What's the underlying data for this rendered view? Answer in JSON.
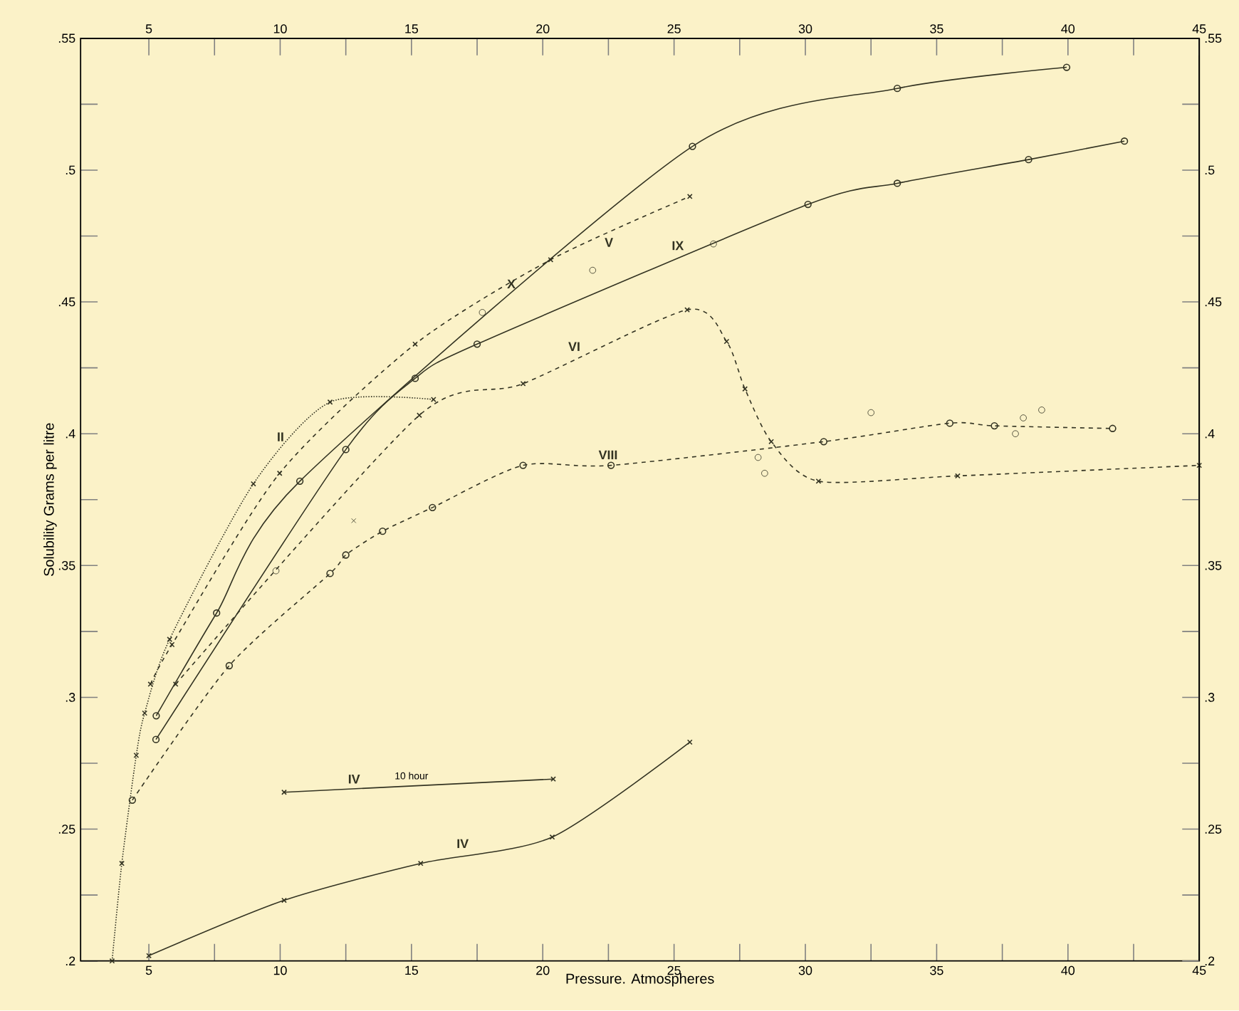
{
  "chart_data": {
    "type": "line",
    "xlabel": "Pressure. Atmospheres",
    "ylabel": "Solubility Grams per litre",
    "xlim": [
      2.4,
      45
    ],
    "x2lim": [
      2.4,
      45
    ],
    "xticks": [
      5,
      {
        "value": 7.5,
        "label": null
      },
      10,
      {
        "value": 12.5,
        "label": null
      },
      15,
      {
        "value": 17.5,
        "label": null
      },
      20,
      {
        "value": 22.5,
        "label": null
      },
      25,
      {
        "value": 27.5,
        "label": null
      },
      30,
      {
        "value": 32.5,
        "label": null
      },
      35,
      {
        "value": 37.5,
        "label": null
      },
      40,
      {
        "value": 42.5,
        "label": null
      },
      45
    ],
    "x2ticks": [
      5,
      {
        "value": 7.5,
        "label": null
      },
      10,
      {
        "value": 12.5,
        "label": null
      },
      15,
      {
        "value": 17.5,
        "label": null
      },
      20,
      {
        "value": 22.5,
        "label": null
      },
      25,
      {
        "value": 27.5,
        "label": null
      },
      30,
      {
        "value": 32.5,
        "label": null
      },
      35,
      {
        "value": 37.5,
        "label": null
      },
      40,
      {
        "value": 42.5,
        "label": null
      },
      45
    ],
    "ylim": [
      0.2,
      0.55
    ],
    "y2lim": [
      0.2,
      0.55
    ],
    "yticks": [
      {
        "value": 0.2,
        "label": ".2"
      },
      {
        "value": 0.225,
        "label": null
      },
      {
        "value": 0.25,
        "label": ".25"
      },
      {
        "value": 0.275,
        "label": null
      },
      {
        "value": 0.3,
        "label": ".3"
      },
      {
        "value": 0.325,
        "label": null
      },
      {
        "value": 0.35,
        "label": ".35"
      },
      {
        "value": 0.375,
        "label": null
      },
      {
        "value": 0.4,
        "label": ".4"
      },
      {
        "value": 0.425,
        "label": null
      },
      {
        "value": 0.45,
        "label": ".45"
      },
      {
        "value": 0.475,
        "label": null
      },
      {
        "value": 0.5,
        "label": ".5"
      },
      {
        "value": 0.525,
        "label": null
      },
      {
        "value": 0.55,
        "label": ".55"
      }
    ],
    "y2ticks": [
      {
        "value": 0.2,
        "label": ".2"
      },
      {
        "value": 0.225,
        "label": null
      },
      {
        "value": 0.25,
        "label": ".25"
      },
      {
        "value": 0.275,
        "label": null
      },
      {
        "value": 0.3,
        "label": ".3"
      },
      {
        "value": 0.325,
        "label": null
      },
      {
        "value": 0.35,
        "label": ".35"
      },
      {
        "value": 0.375,
        "label": null
      },
      {
        "value": 0.4,
        "label": ".4"
      },
      {
        "value": 0.425,
        "label": null
      },
      {
        "value": 0.45,
        "label": ".45"
      },
      {
        "value": 0.475,
        "label": null
      },
      {
        "value": 0.5,
        "label": ".5"
      },
      {
        "value": 0.525,
        "label": null
      },
      {
        "value": 0.55,
        "label": ".55"
      }
    ],
    "series": [
      {
        "name": "X",
        "color": "#333322",
        "marker": "circle",
        "line_style": "solid",
        "x": [
          5.28,
          7.58,
          10.75,
          25.7,
          33.5,
          39.95
        ],
        "values": [
          0.293,
          0.332,
          0.382,
          0.509,
          0.531,
          0.539
        ]
      },
      {
        "name": "IX",
        "color": "#333322",
        "marker": "circle",
        "line_style": "solid",
        "x": [
          5.27,
          12.5,
          15.14,
          17.5,
          30.1,
          33.5,
          38.5,
          42.15
        ],
        "values": [
          0.284,
          0.394,
          0.421,
          0.434,
          0.487,
          0.495,
          0.504,
          0.511
        ]
      },
      {
        "name": "V",
        "color": "#333322",
        "marker": "cross",
        "line_style": "dashed",
        "x": [
          5.06,
          5.88,
          9.98,
          15.14,
          20.3,
          25.6
        ],
        "values": [
          0.305,
          0.32,
          0.385,
          0.434,
          0.466,
          0.49
        ]
      },
      {
        "name": "VI",
        "color": "#333322",
        "marker": "cross",
        "line_style": "dashed",
        "x": [
          6.02,
          15.3,
          19.25,
          25.5,
          27.0,
          27.7,
          28.7,
          30.5,
          35.8,
          45
        ],
        "values": [
          0.305,
          0.407,
          0.419,
          0.447,
          0.435,
          0.417,
          0.397,
          0.382,
          0.384,
          0.388
        ]
      },
      {
        "name": "II",
        "color": "#333322",
        "marker": "cross",
        "line_style": "dotted",
        "x": [
          3.6,
          3.97,
          4.52,
          4.84,
          5.79,
          8.98,
          11.9,
          15.84
        ],
        "values": [
          0.2,
          0.237,
          0.278,
          0.294,
          0.322,
          0.381,
          0.412,
          0.413
        ]
      },
      {
        "name": "VIII",
        "color": "#333322",
        "marker": "circle",
        "line_style": "dashed",
        "x": [
          4.37,
          8.06,
          11.9,
          12.5,
          13.9,
          15.8,
          19.25,
          22.6,
          30.7,
          35.5,
          37.2,
          41.7
        ],
        "values": [
          0.261,
          0.312,
          0.347,
          0.354,
          0.363,
          0.372,
          0.388,
          0.388,
          0.397,
          0.404,
          0.403,
          0.402
        ]
      },
      {
        "name": "IV",
        "color": "#333322",
        "marker": "cross",
        "line_style": "solid",
        "x": [
          10.15,
          20.4
        ],
        "values": [
          0.264,
          0.269
        ]
      },
      {
        "name": "IV",
        "color": "#333322",
        "marker": "cross",
        "line_style": "solid",
        "x": [
          5.0,
          10.15,
          15.35,
          20.36,
          25.6
        ],
        "values": [
          0.202,
          0.223,
          0.237,
          0.247,
          0.283
        ]
      },
      {
        "type": "scatter",
        "color": "#333322",
        "marker": "circle",
        "x": [
          9.84,
          17.7,
          21.9,
          26.5,
          28.2,
          28.45,
          32.5,
          38.0,
          38.3,
          39.0
        ],
        "values": [
          0.348,
          0.446,
          0.462,
          0.472,
          0.391,
          0.385,
          0.408,
          0.4,
          0.406,
          0.409
        ]
      },
      {
        "type": "scatter",
        "color": "#333322",
        "marker": "cross",
        "x": [
          12.8
        ],
        "values": [
          0.367
        ]
      }
    ],
    "annotations": [
      {
        "text": "10 hour",
        "x": 15,
        "y": 0.267
      }
    ]
  }
}
